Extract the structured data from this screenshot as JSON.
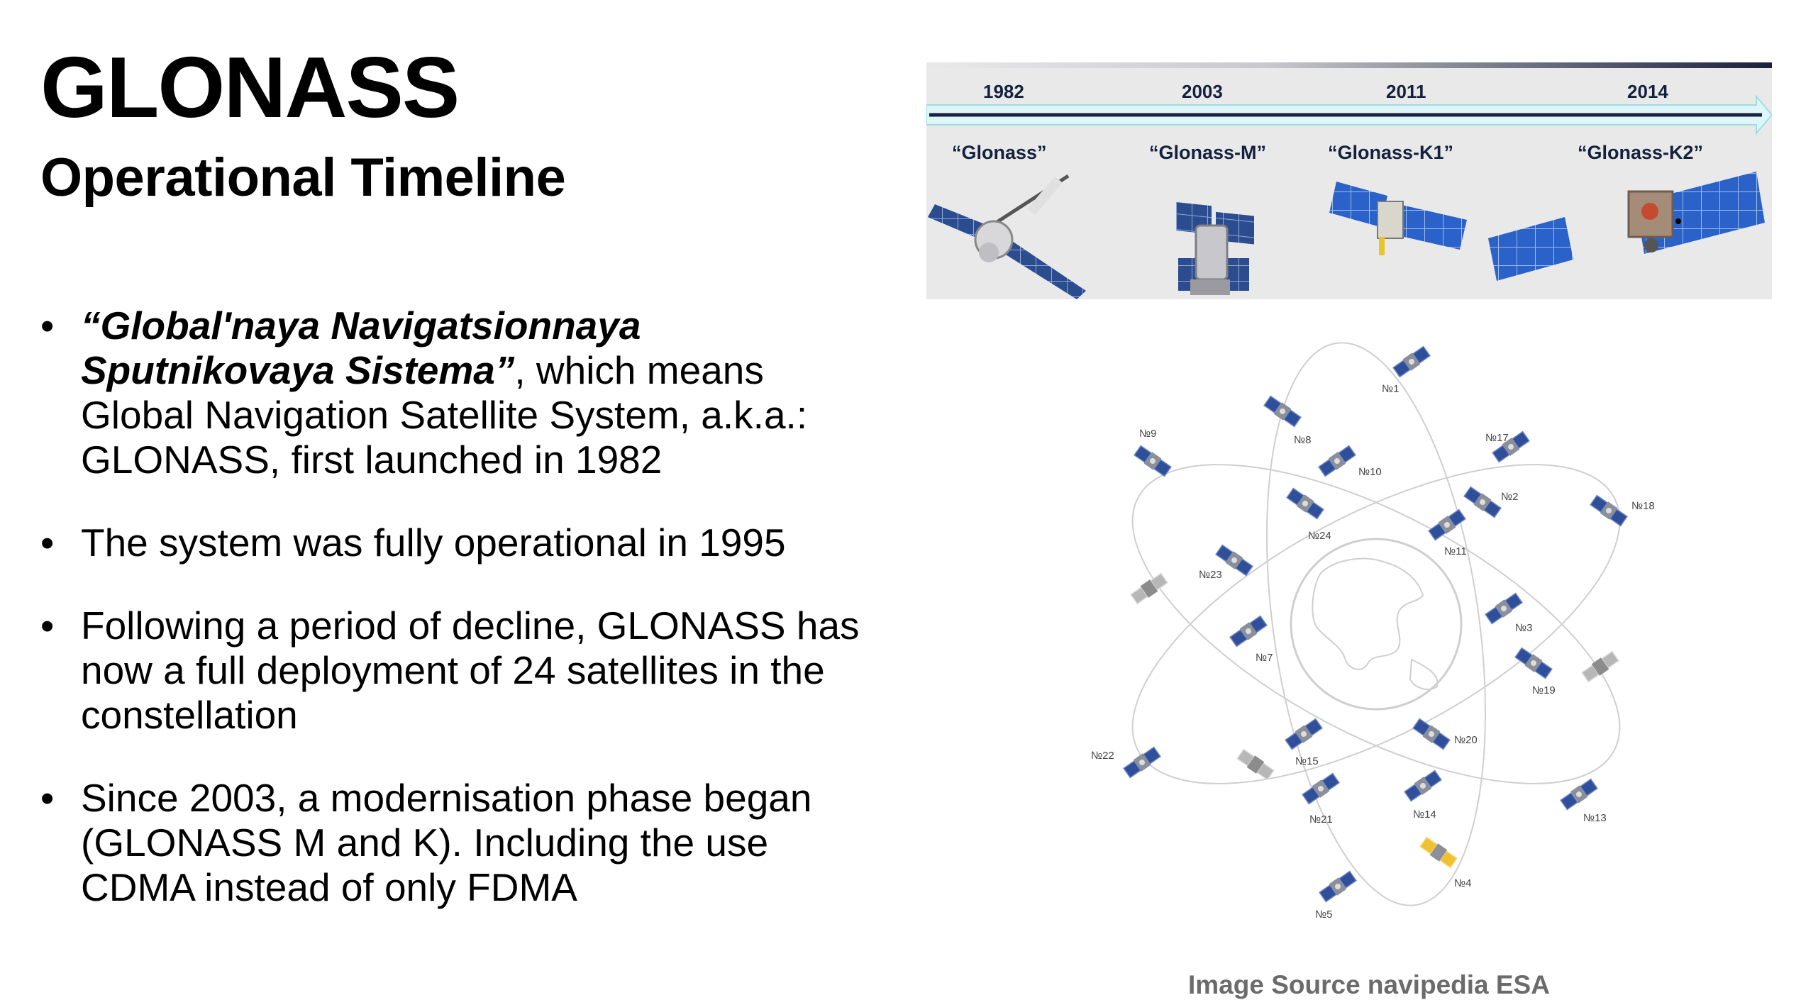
{
  "slide": {
    "title": "GLONASS",
    "subtitle": "Operational Timeline"
  },
  "bullets": [
    {
      "em": "“Global'naya Navigatsionnaya Sputnikovaya Sistema”",
      "text": ", which means Global Navigation Satellite System, a.k.a.: GLONASS, first launched in 1982"
    },
    {
      "em": "",
      "text": "The system was fully operational in 1995"
    },
    {
      "em": "",
      "text": "Following a period of decline, GLONASS has now a full deployment of 24 satellites in the constellation"
    },
    {
      "em": "",
      "text": "Since 2003, a modernisation phase began (GLONASS M and K).  Including the use CDMA instead of only FDMA"
    }
  ],
  "timeline": {
    "years": [
      "1982",
      "2003",
      "2011",
      "2014"
    ],
    "satellites": [
      "“Glonass”",
      "“Glonass-M”",
      "“Glonass-K1”",
      "“Glonass-K2”"
    ]
  },
  "constellation": {
    "labels": [
      "№1",
      "№2",
      "№3",
      "№4",
      "№5",
      "№7",
      "№8",
      "№9",
      "№10",
      "№11",
      "№13",
      "№14",
      "№15",
      "№17",
      "№18",
      "№19",
      "№20",
      "№21",
      "№22",
      "№23",
      "№24"
    ]
  },
  "source": {
    "text": "Image Source navipedia ESA"
  },
  "colors": {
    "panel_blue": "#2a62c9",
    "text_navy": "#14213d",
    "source_gray": "#6b6b6b",
    "arrow_fill": "#dff6f8"
  }
}
